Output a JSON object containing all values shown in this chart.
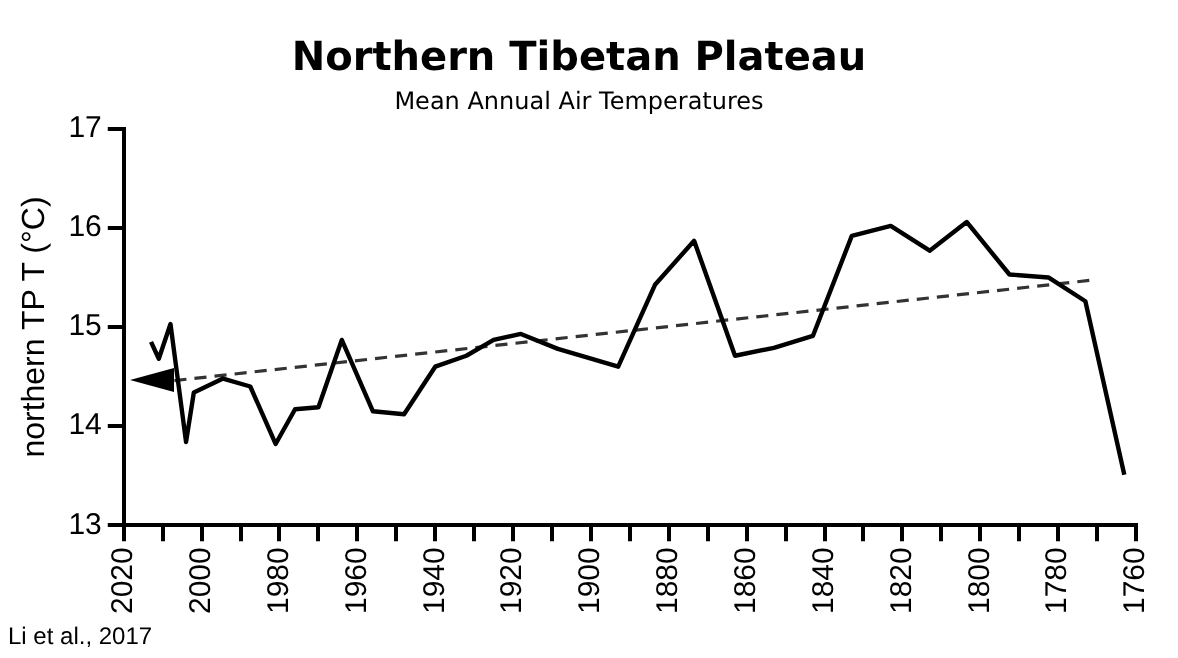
{
  "chart_data": {
    "type": "line",
    "title": "Northern Tibetan Plateau",
    "subtitle": "Mean Annual Air Temperatures",
    "ylabel": "northern TP T (°C)",
    "annotations": [
      "Li et al., 2017"
    ],
    "xlim": [
      2020,
      1760
    ],
    "xticks": [
      2020,
      {
        "value": 2010,
        "label": null
      },
      2000,
      {
        "value": 1990,
        "label": null
      },
      1980,
      {
        "value": 1970,
        "label": null
      },
      1960,
      {
        "value": 1950,
        "label": null
      },
      1940,
      {
        "value": 1930,
        "label": null
      },
      1920,
      {
        "value": 1910,
        "label": null
      },
      1900,
      {
        "value": 1890,
        "label": null
      },
      1880,
      {
        "value": 1870,
        "label": null
      },
      1860,
      {
        "value": 1850,
        "label": null
      },
      1840,
      {
        "value": 1830,
        "label": null
      },
      1820,
      {
        "value": 1810,
        "label": null
      },
      1800,
      {
        "value": 1790,
        "label": null
      },
      1780,
      {
        "value": 1770,
        "label": null
      },
      1760
    ],
    "ylim": [
      13,
      17
    ],
    "yticks": [
      13,
      14,
      15,
      16,
      17
    ],
    "grid": false,
    "legend": false,
    "marker": "none",
    "series": [
      {
        "color": "#000000",
        "line_style": "solid",
        "x": [
          2013,
          2011,
          2008,
          2004,
          2002,
          1994.5,
          1987.5,
          1981,
          1976,
          1970,
          1964,
          1956,
          1948,
          1940,
          1932,
          1925,
          1918,
          1908.5,
          1893,
          1883.5,
          1873.5,
          1863,
          1853,
          1843,
          1833,
          1823,
          1813,
          1803.5,
          1792.5,
          1782.5,
          1773,
          1763
        ],
        "values": [
          14.85,
          14.68,
          15.03,
          13.84,
          14.34,
          14.48,
          14.4,
          13.82,
          14.17,
          14.19,
          14.87,
          14.15,
          14.12,
          14.6,
          14.71,
          14.87,
          14.93,
          14.78,
          14.6,
          15.43,
          15.87,
          14.71,
          14.79,
          14.91,
          15.92,
          16.02,
          15.77,
          16.06,
          15.53,
          15.5,
          15.26,
          13.51
        ]
      },
      {
        "type": "line",
        "color": "#333333",
        "line_style": "dashed",
        "x": [
          2007,
          1772
        ],
        "values": [
          14.46,
          15.47
        ]
      }
    ]
  }
}
